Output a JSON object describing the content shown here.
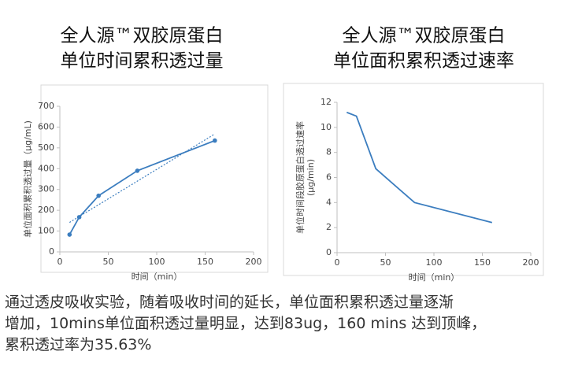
{
  "chart_data": [
    {
      "type": "line",
      "title": [
        "全人源™双胶原蛋白",
        "单位时间累积透过量"
      ],
      "ylabel": [
        "单位面积累积透过量（μg/mL)"
      ],
      "xlabel": "时间（min）",
      "x": [
        10,
        20,
        40,
        80,
        160
      ],
      "values": [
        83,
        167,
        270,
        390,
        535
      ],
      "color": "#3b7dbf",
      "markers": true,
      "trendline": true,
      "xlim": [
        0,
        200
      ],
      "xticks": [
        0,
        50,
        100,
        150,
        200
      ],
      "ylim": [
        0,
        700
      ],
      "yticks": [
        0,
        100,
        200,
        300,
        400,
        500,
        600,
        700
      ]
    },
    {
      "type": "line",
      "title": [
        "全人源™双胶原蛋白",
        "单位面积累积透过速率"
      ],
      "ylabel": [
        "单位时间段胶原蛋白透过速率",
        "(μg/min)"
      ],
      "xlabel": "时间（min）",
      "x": [
        10,
        20,
        40,
        80,
        160
      ],
      "values": [
        11.2,
        10.9,
        6.7,
        4.0,
        2.4
      ],
      "color": "#3b7dbf",
      "markers": false,
      "trendline": false,
      "xlim": [
        0,
        200
      ],
      "xticks": [
        0,
        50,
        100,
        150,
        200
      ],
      "ylim": [
        0,
        12
      ],
      "yticks": [
        0,
        2,
        4,
        6,
        8,
        10,
        12
      ]
    }
  ],
  "caption": [
    "通过透皮吸收实验，随着吸收时间的延长，单位面积累积透过量逐渐",
    "增加，10mins单位面积透过量明显，达到83ug，160 mins 达到顶峰，",
    "累积透过率为35.63%"
  ]
}
